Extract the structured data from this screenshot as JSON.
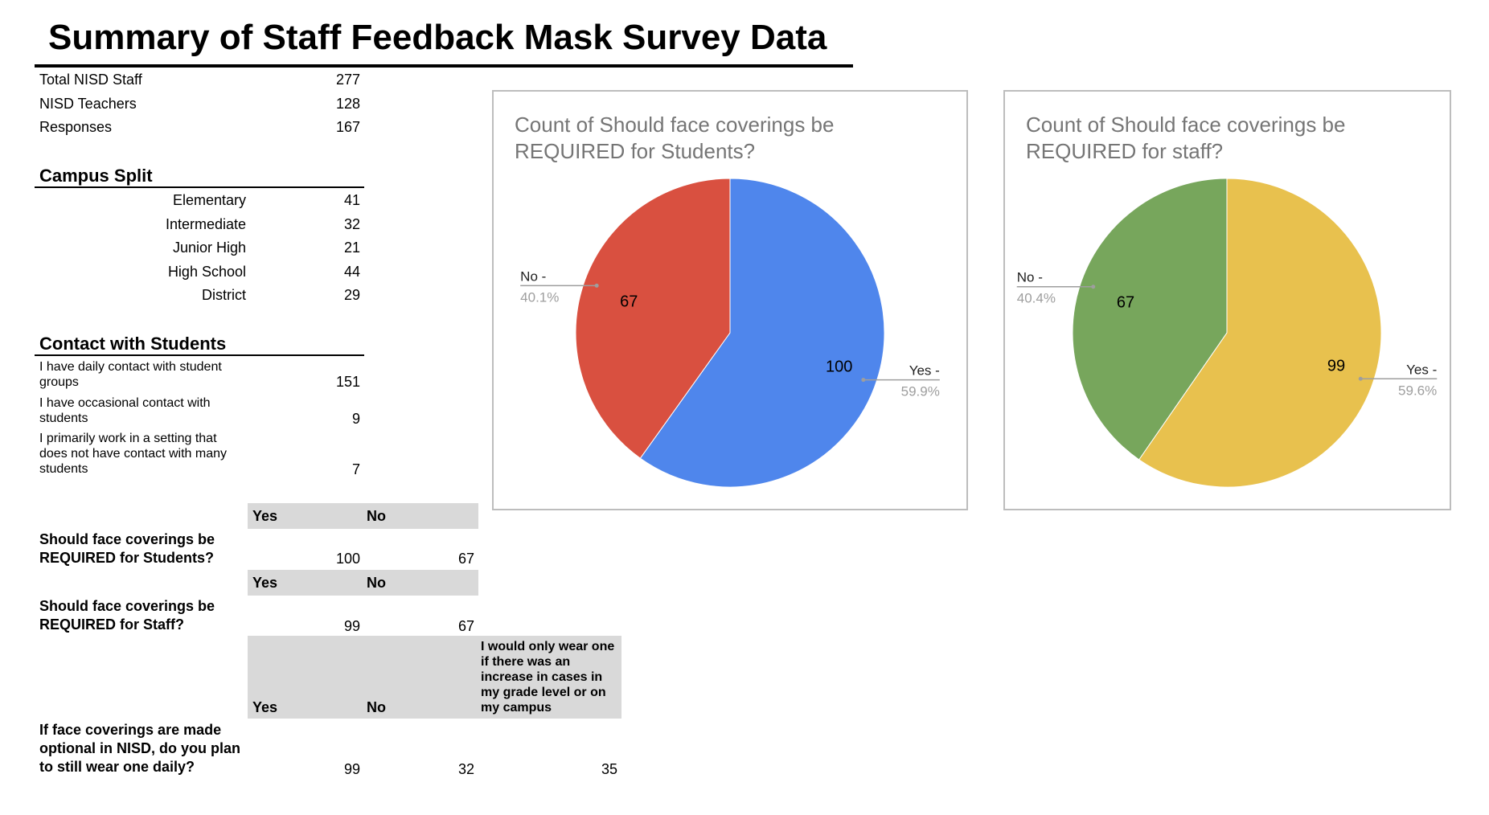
{
  "page_title": "Summary of Staff Feedback Mask Survey Data",
  "totals": [
    {
      "label": "Total NISD Staff",
      "value": "277"
    },
    {
      "label": "NISD Teachers",
      "value": "128"
    },
    {
      "label": "Responses",
      "value": "167"
    }
  ],
  "campus_split": {
    "heading": "Campus Split",
    "rows": [
      {
        "label": "Elementary",
        "value": "41"
      },
      {
        "label": "Intermediate",
        "value": "32"
      },
      {
        "label": "Junior High",
        "value": "21"
      },
      {
        "label": "High School",
        "value": "44"
      },
      {
        "label": "District",
        "value": "29"
      }
    ]
  },
  "contact": {
    "heading": "Contact with Students",
    "rows": [
      {
        "label": "I have daily contact with student groups",
        "value": "151"
      },
      {
        "label": "I have occasional contact with students",
        "value": "9"
      },
      {
        "label": "I primarily work in a setting that does not have contact with many students",
        "value": "7"
      }
    ]
  },
  "q_students": {
    "question": "Should face coverings be REQUIRED for Students?",
    "yes_header": "Yes",
    "no_header": "No",
    "yes": "100",
    "no": "67"
  },
  "q_staff": {
    "question": "Should face coverings be REQUIRED for Staff?",
    "yes_header": "Yes",
    "no_header": "No",
    "yes": "99",
    "no": "67"
  },
  "q_optional": {
    "question": "If face coverings are made optional in NISD, do you plan to still wear one daily?",
    "yes_header": "Yes",
    "no_header": "No",
    "other_header": "I would only wear one if there was an increase in cases in my grade level or on my campus",
    "yes": "99",
    "no": "32",
    "other": "35"
  },
  "chart_data": [
    {
      "type": "pie",
      "title": "Count of Should face coverings be REQUIRED for Students?",
      "categories": [
        "Yes",
        "No"
      ],
      "values": [
        100,
        67
      ],
      "percent_labels": [
        "59.9%",
        "40.1%"
      ],
      "legend_labels": [
        "Yes -",
        "No -"
      ],
      "colors": [
        "#4f86ec",
        "#d95040"
      ]
    },
    {
      "type": "pie",
      "title": "Count of Should face coverings be REQUIRED for staff?",
      "categories": [
        "Yes",
        "No"
      ],
      "values": [
        99,
        67
      ],
      "percent_labels": [
        "59.6%",
        "40.4%"
      ],
      "legend_labels": [
        "Yes -",
        "No -"
      ],
      "colors": [
        "#e8c14e",
        "#77a65c"
      ]
    }
  ]
}
